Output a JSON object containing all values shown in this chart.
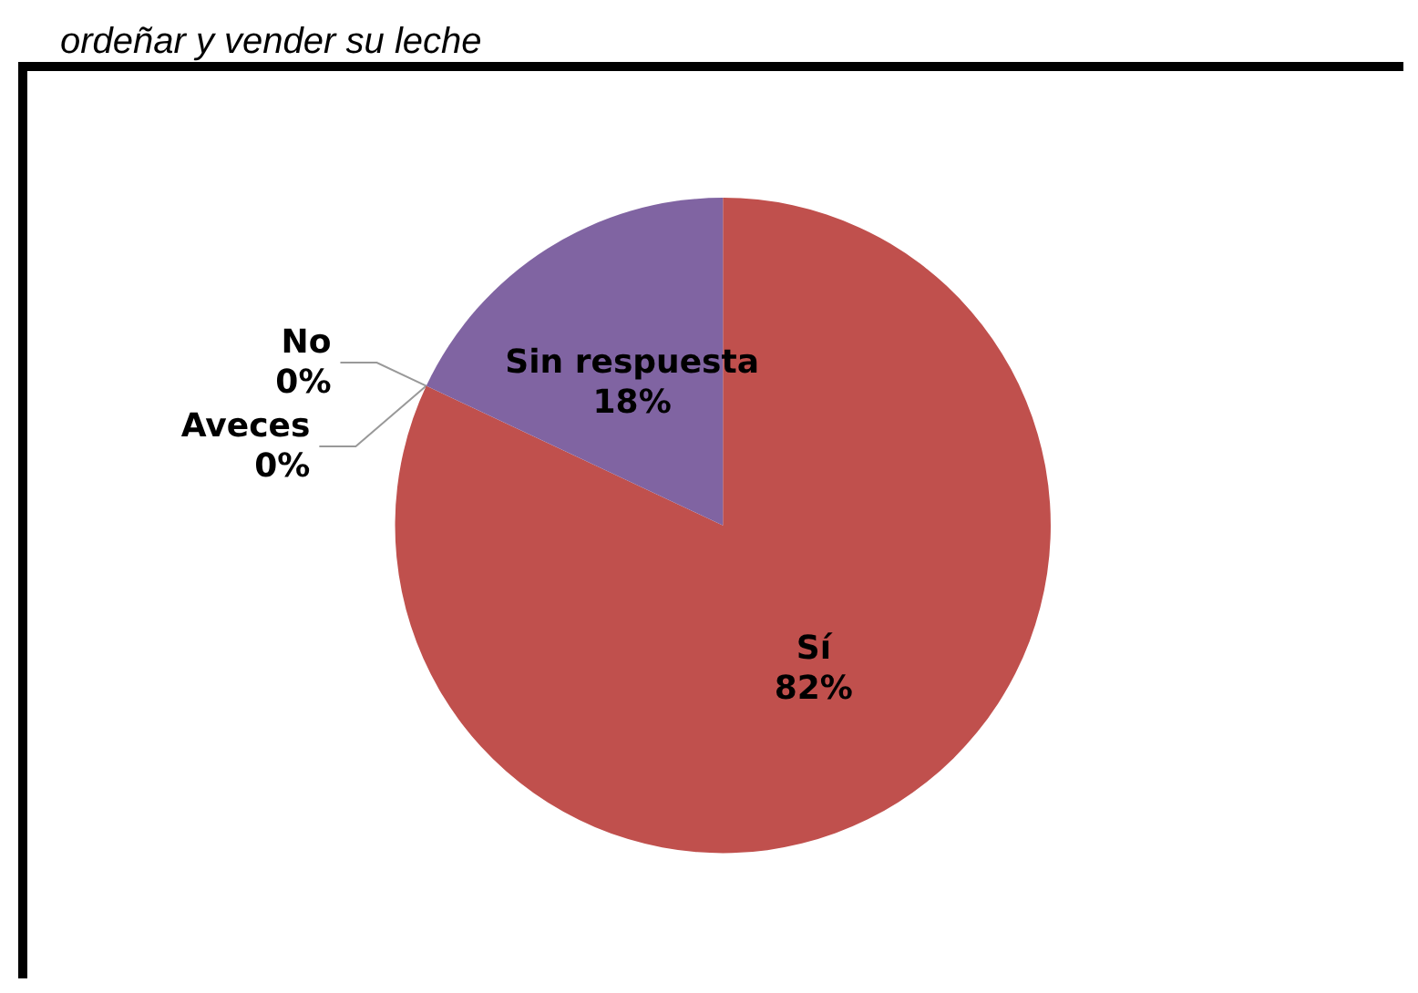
{
  "chart_data": {
    "type": "pie",
    "title": "ordeñar y vender su leche",
    "categories": [
      "Sí",
      "No",
      "Aveces",
      "Sin respuesta"
    ],
    "values": [
      82,
      0,
      0,
      18
    ],
    "colors": [
      "#c0504d",
      "#4f81bd",
      "#9bbb59",
      "#8064a2"
    ],
    "value_labels": [
      "82%",
      "0%",
      "0%",
      "18%"
    ]
  }
}
